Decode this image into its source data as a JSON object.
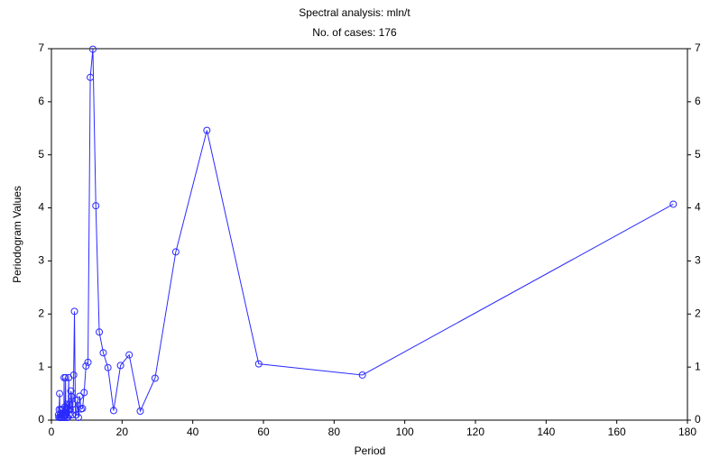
{
  "chart_data": {
    "type": "line",
    "title": "Spectral analysis: mln/t",
    "subtitle": "No. of cases: 176",
    "x_label": "Period",
    "y_label": "Periodogram Values",
    "xlim": [
      0,
      180
    ],
    "xticks": [
      0,
      20,
      40,
      60,
      80,
      100,
      120,
      140,
      160,
      180
    ],
    "ylim": [
      0,
      7
    ],
    "yticks": [
      0,
      1,
      2,
      3,
      4,
      5,
      6,
      7
    ],
    "y2lim": [
      0,
      7
    ],
    "y2ticks": [
      0,
      1,
      2,
      3,
      4,
      5,
      6,
      7
    ],
    "color": "#2b2bff",
    "x": [
      176,
      88,
      58.67,
      44,
      35.2,
      29.33,
      25.14,
      22,
      19.56,
      17.6,
      16,
      14.67,
      13.54,
      12.57,
      11.73,
      11,
      10.35,
      9.78,
      9.26,
      8.8,
      8.38,
      8,
      7.65,
      7.33,
      7.04,
      6.77,
      6.52,
      6.29,
      6.07,
      5.87,
      5.68,
      5.5,
      5.33,
      5.18,
      5.03,
      4.89,
      4.76,
      4.63,
      4.51,
      4.4,
      4.29,
      4.19,
      4.09,
      4,
      3.91,
      3.83,
      3.74,
      3.67,
      3.59,
      3.52,
      3.38,
      3.2,
      3.03,
      2.93,
      2.75,
      2.67,
      2.51,
      2.44,
      2.32,
      2.2,
      2.1,
      2
    ],
    "values": [
      4.07,
      0.85,
      1.06,
      5.46,
      3.17,
      0.79,
      0.17,
      1.23,
      1.03,
      0.18,
      0.99,
      1.27,
      1.66,
      4.04,
      6.99,
      6.46,
      1.09,
      1.02,
      0.52,
      0.22,
      0.21,
      0.45,
      0.05,
      0.38,
      0.1,
      0.2,
      2.05,
      0.85,
      0.3,
      0.1,
      0.45,
      0.55,
      0.2,
      0.3,
      0.1,
      0.8,
      0.2,
      0.05,
      0.3,
      0.15,
      0.05,
      0.2,
      0.1,
      0.8,
      0.1,
      0.25,
      0.05,
      0.15,
      0.8,
      0.1,
      0.05,
      0.2,
      0.05,
      0.1,
      0.05,
      0.2,
      0.1,
      0.05,
      0.5,
      0.2,
      0.05,
      0.1
    ]
  }
}
